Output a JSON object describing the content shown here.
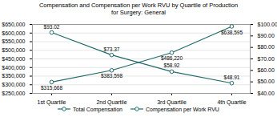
{
  "chart_data": {
    "type": "line",
    "title": "Compensation and Compensation per Work RVU by Quartile of Production\nfor Surgery: General",
    "categories": [
      "1st Quartile",
      "2nd Quartile",
      "3rd Quartile",
      "4th Quartile"
    ],
    "series": [
      {
        "name": "Total Compensation",
        "color": "#1f6b6b",
        "marker": "circle",
        "line_style": "solid",
        "values": [
          315668,
          383598,
          486220,
          638595
        ],
        "value_labels": [
          "$315,668",
          "$383,598",
          "$486,220",
          "$638,595"
        ]
      },
      {
        "name": "Compensation per Work RVU",
        "color": "#1f6b6b",
        "marker": "circle",
        "line_style": "solid",
        "axis": "y2",
        "values": [
          93.02,
          73.37,
          58.92,
          48.91
        ],
        "value_labels": [
          "$93.02",
          "$73.37",
          "$58.92",
          "$48.91"
        ]
      }
    ],
    "ylim": [
      250000,
      650000
    ],
    "yticks": [
      {
        "value": 250000,
        "label": "$250,000"
      },
      {
        "value": 300000,
        "label": "$300,000"
      },
      {
        "value": 350000,
        "label": "$350,000"
      },
      {
        "value": 400000,
        "label": "$400,000"
      },
      {
        "value": 450000,
        "label": "$450,000"
      },
      {
        "value": 500000,
        "label": "$500,000"
      },
      {
        "value": 550000,
        "label": "$550,000"
      },
      {
        "value": 600000,
        "label": "$600,000"
      },
      {
        "value": 650000,
        "label": "$650,000"
      }
    ],
    "y2lim": [
      40,
      100
    ],
    "y2ticks": [
      {
        "value": 40,
        "label": "$40.00"
      },
      {
        "value": 50,
        "label": "$50.00"
      },
      {
        "value": 60,
        "label": "$60.00"
      },
      {
        "value": 70,
        "label": "$70.00"
      },
      {
        "value": 80,
        "label": "$80.00"
      },
      {
        "value": 90,
        "label": "$90.00"
      },
      {
        "value": 100,
        "label": "$100.00"
      }
    ],
    "grid": true,
    "data_labels": true,
    "legend": "bottom"
  }
}
